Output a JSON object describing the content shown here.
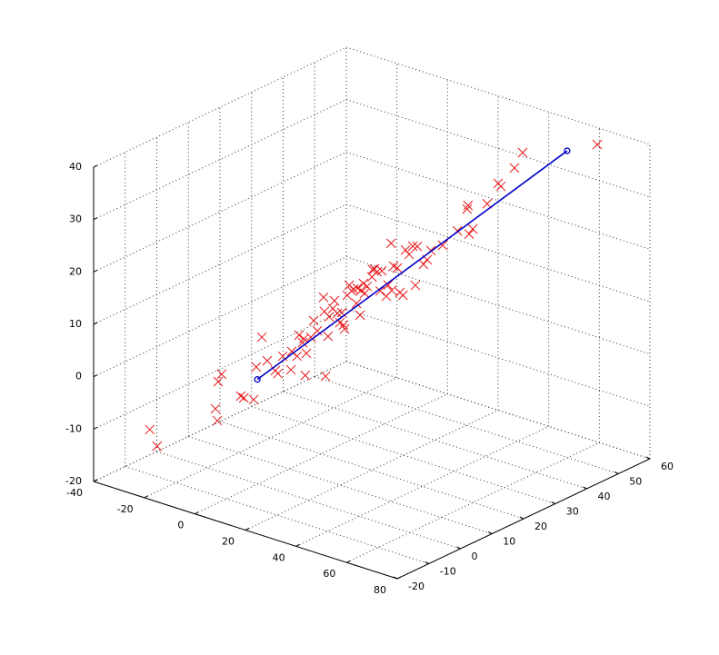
{
  "chart_data": {
    "type": "scatter3d",
    "xlim": [
      -40,
      80
    ],
    "xticks": [
      -40,
      -20,
      0,
      20,
      40,
      60,
      80
    ],
    "ylim": [
      -20,
      60
    ],
    "yticks": [
      -20,
      -10,
      0,
      10,
      20,
      30,
      40,
      50,
      60
    ],
    "zlim": [
      -20,
      40
    ],
    "zticks": [
      -20,
      -10,
      0,
      10,
      20,
      30,
      40
    ],
    "grid": true,
    "points": {
      "color": "#e8181c",
      "marker": "x",
      "x": [
        -20.8,
        -19.4,
        -6.9,
        -7.6,
        -8.1,
        -7.7,
        -3.2,
        -2.6,
        -0.7,
        -0.2,
        0.9,
        1.9,
        3.5,
        4.0,
        4.9,
        6.5,
        6.7,
        7.7,
        8.1,
        8.8,
        9.3,
        9.5,
        9.0,
        10.4,
        10.9,
        11.6,
        12.8,
        13.0,
        13.2,
        13.7,
        13.9,
        14.6,
        15.0,
        15.5,
        16.0,
        16.4,
        16.7,
        16.9,
        17.4,
        17.8,
        18.3,
        18.7,
        19.2,
        19.4,
        19.9,
        20.1,
        20.6,
        20.8,
        21.3,
        22.2,
        22.3,
        22.7,
        23.2,
        23.8,
        24.1,
        25.0,
        25.3,
        25.9,
        26.0,
        26.4,
        27.1,
        27.6,
        28.2,
        28.7,
        29.4,
        30.1,
        30.6,
        31.0,
        32.2,
        32.9,
        33.6,
        35.9,
        38.7,
        40.6,
        40.8,
        41.0,
        41.7,
        44.5,
        46.6,
        47.2,
        49.8,
        51.4,
        65.8
      ],
      "y": [
        -17.6,
        -16.4,
        -6.0,
        -6.5,
        -7.0,
        -6.7,
        -2.9,
        -2.4,
        -0.8,
        -0.4,
        0.5,
        1.4,
        2.7,
        3.1,
        3.9,
        5.2,
        5.3,
        6.2,
        6.5,
        7.1,
        7.5,
        7.7,
        7.3,
        8.4,
        8.9,
        9.5,
        10.5,
        10.6,
        10.8,
        11.2,
        11.4,
        12.0,
        12.2,
        12.7,
        13.1,
        13.4,
        13.7,
        13.9,
        14.3,
        14.6,
        15.0,
        15.3,
        15.8,
        15.9,
        16.4,
        16.5,
        16.9,
        17.1,
        17.5,
        18.3,
        18.4,
        18.7,
        19.1,
        19.6,
        19.9,
        20.6,
        20.9,
        21.4,
        21.5,
        21.8,
        22.4,
        22.8,
        23.3,
        23.7,
        24.3,
        24.9,
        25.3,
        25.6,
        26.6,
        27.2,
        27.8,
        29.7,
        32.1,
        33.7,
        33.8,
        34.0,
        34.6,
        36.9,
        38.7,
        39.1,
        41.3,
        42.6,
        54.7
      ],
      "z": [
        -7.8,
        -11.1,
        1.6,
        0.2,
        -4.9,
        -7.2,
        -2.9,
        -3.3,
        -3.8,
        2.4,
        8.0,
        3.4,
        1.4,
        0.8,
        4.0,
        1.3,
        4.8,
        3.8,
        7.8,
        6.3,
        0.0,
        4.2,
        7.0,
        7.2,
        10.3,
        8.3,
        14.6,
        11.9,
        -0.5,
        7.1,
        10.8,
        12.3,
        13.8,
        11.3,
        9.5,
        11.4,
        9.0,
        8.2,
        14.6,
        16.5,
        15.4,
        15.7,
        12.9,
        15.8,
        10.6,
        15.3,
        16.6,
        14.7,
        16.0,
        17.7,
        19.1,
        19.2,
        18.6,
        14.9,
        18.7,
        13.8,
        15.9,
        23.8,
        14.8,
        19.4,
        19.0,
        14.3,
        13.7,
        22.3,
        21.4,
        22.9,
        15.4,
        22.8,
        19.3,
        20.1,
        21.8,
        22.6,
        25.1,
        29.1,
        29.8,
        24.3,
        25.2,
        29.8,
        33.5,
        32.9,
        36.2,
        39.0,
        39.3
      ]
    },
    "line": {
      "color": "#0000c8",
      "marker": "o",
      "x": [
        0,
        60.0
      ],
      "y": [
        -0.2,
        49.8
      ],
      "z": [
        0.0,
        38.6
      ]
    }
  }
}
